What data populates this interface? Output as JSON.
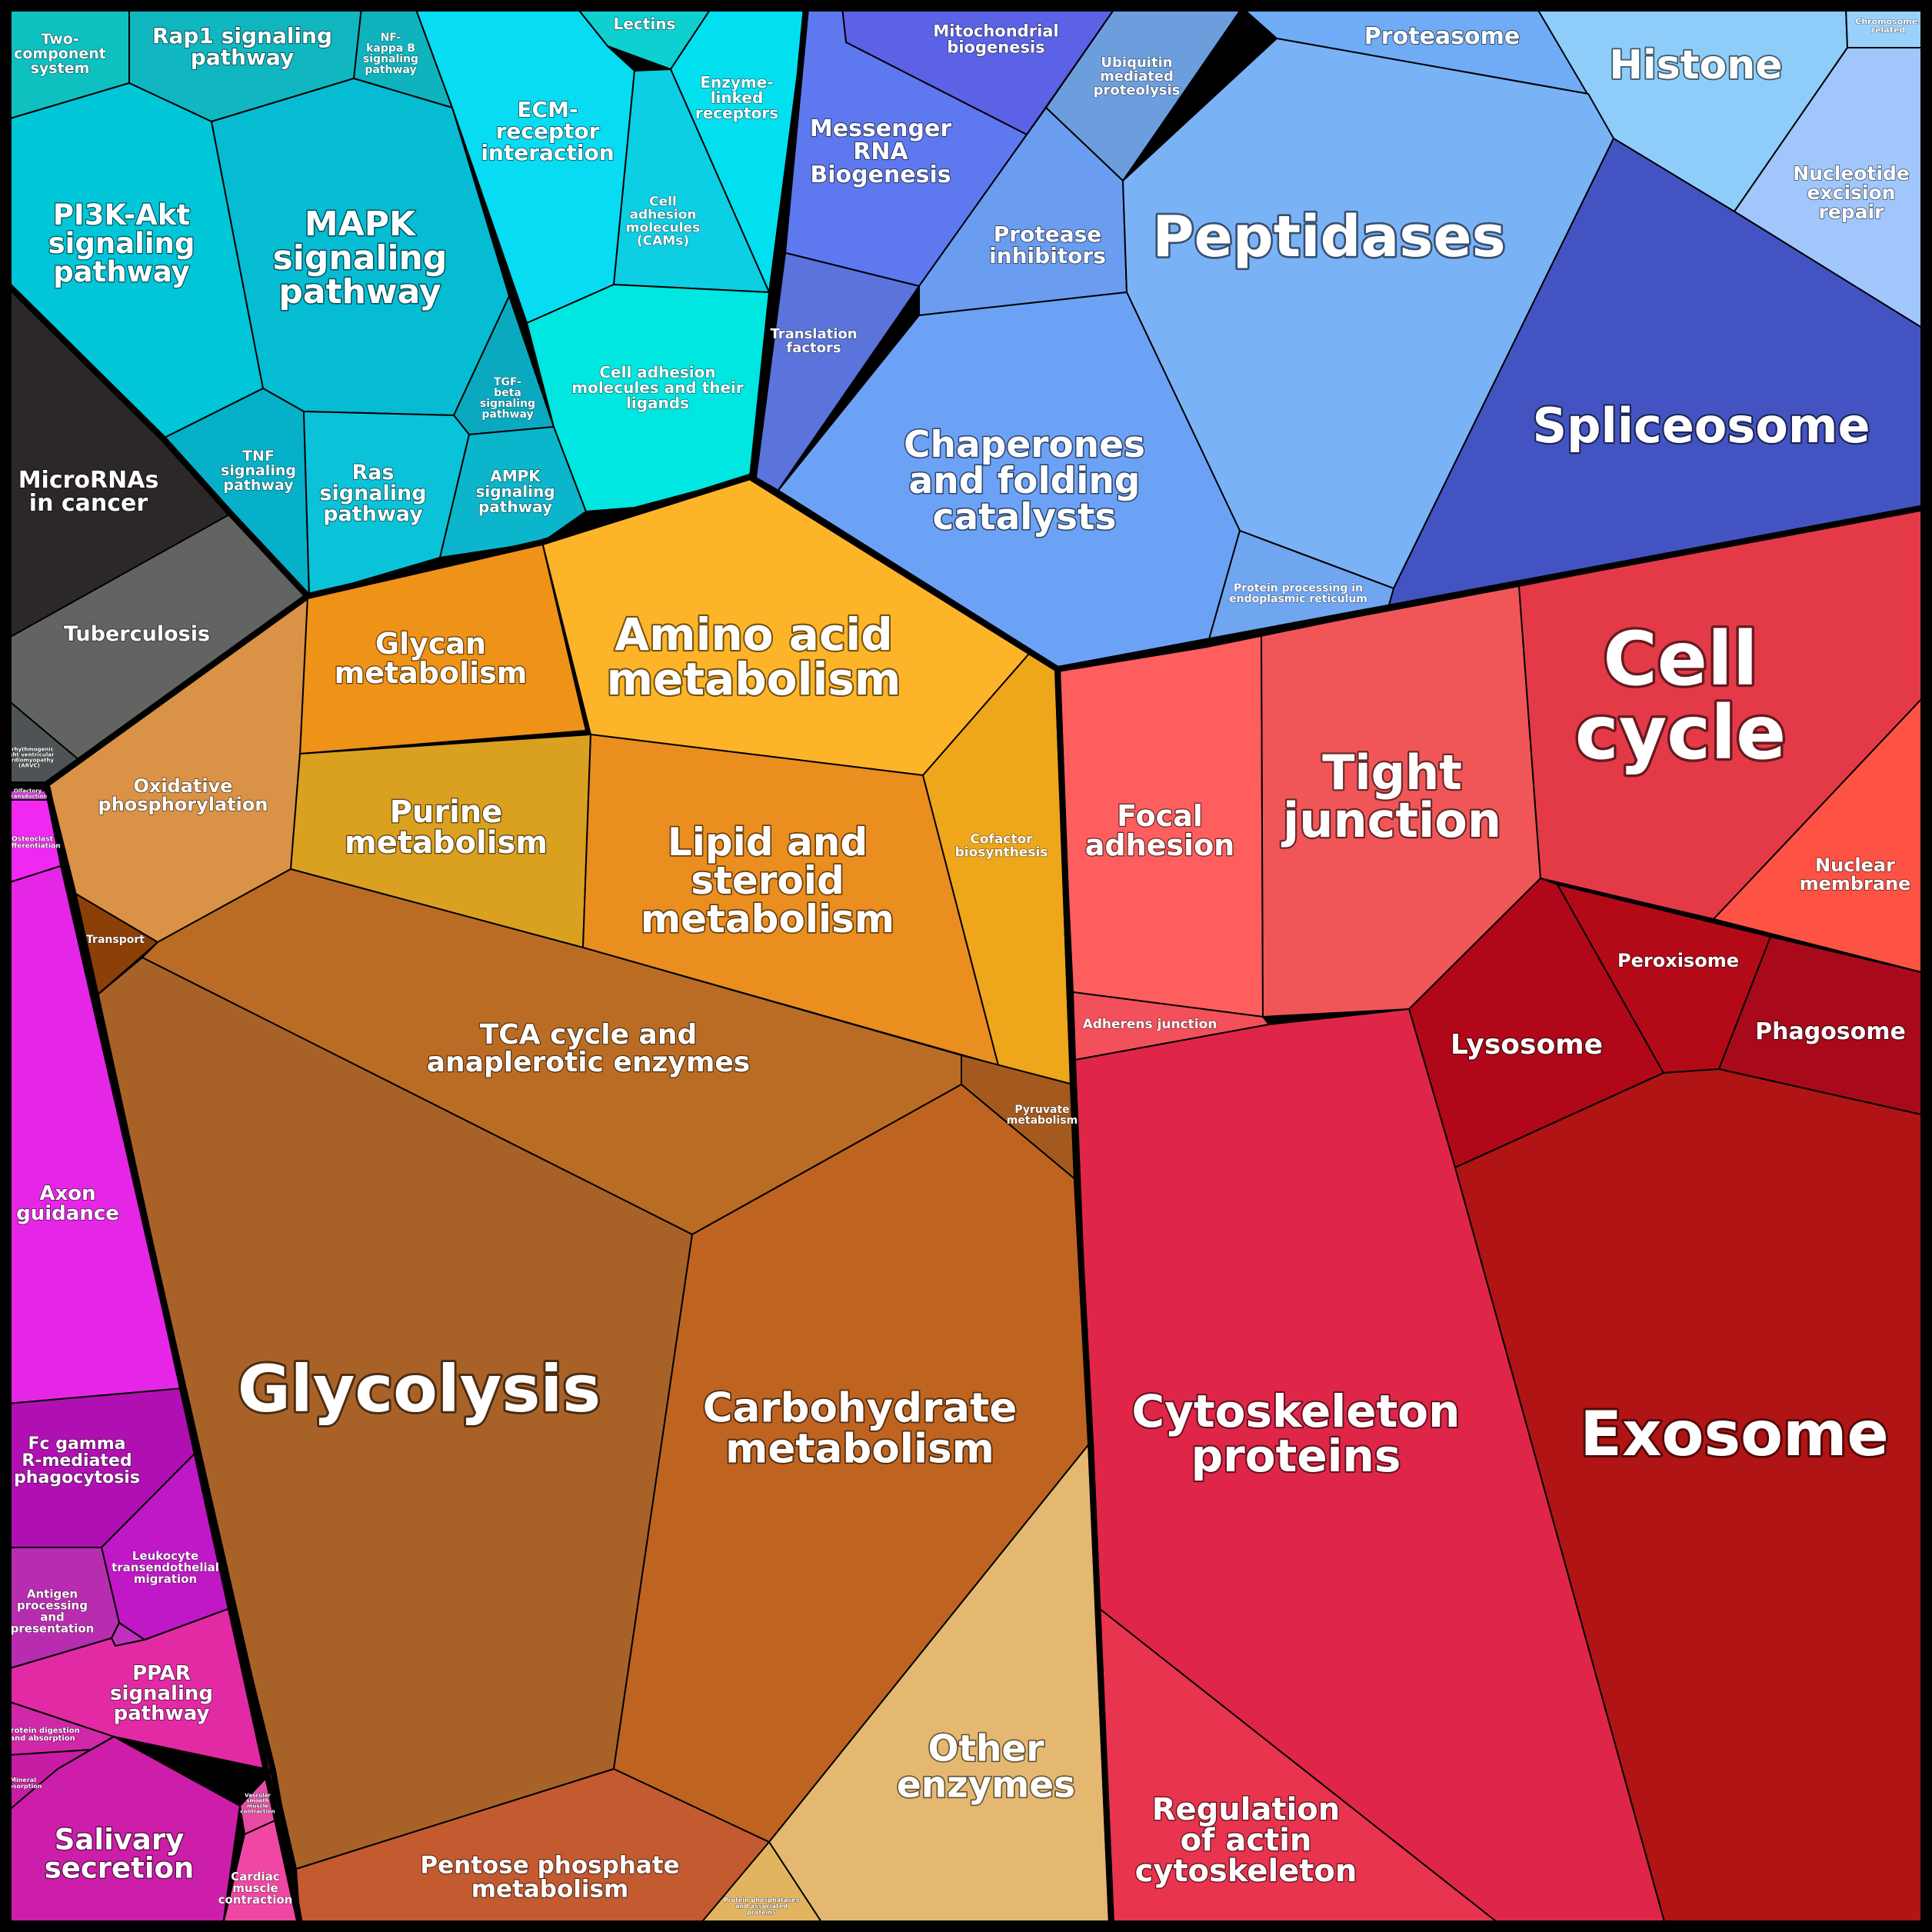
{
  "cells": [
    {
      "id": "two-component-system",
      "label": "Two-\ncomponent\nsystem",
      "color": "#0fc0c0"
    },
    {
      "id": "rap1-signaling-pathway",
      "label": "Rap1 signaling\npathway",
      "color": "#10b7c0"
    },
    {
      "id": "nf-kappa-b-signaling-pathway",
      "label": "NF-\nkappa B\nsignaling\npathway",
      "color": "#0fb3bd"
    },
    {
      "id": "pi3k-akt-signaling-pathway",
      "label": "PI3K-Akt\nsignaling\npathway",
      "color": "#00c6d8"
    },
    {
      "id": "mapk-signaling-pathway",
      "label": "MAPK\nsignaling\npathway",
      "color": "#06bcd2"
    },
    {
      "id": "tgf-beta-signaling-pathway",
      "label": "TGF-\nbeta\nsignaling\npathway",
      "color": "#0aa9c0"
    },
    {
      "id": "tnf-signaling-pathway",
      "label": "TNF\nsignaling\npathway",
      "color": "#06b0c8"
    },
    {
      "id": "ras-signaling-pathway",
      "label": "Ras\nsignaling\npathway",
      "color": "#0bc3d8"
    },
    {
      "id": "ampk-signaling-pathway",
      "label": "AMPK\nsignaling\npathway",
      "color": "#0bb6cc"
    },
    {
      "id": "lectins",
      "label": "Lectins",
      "color": "#0fd0d0"
    },
    {
      "id": "ecm-receptor-interaction",
      "label": "ECM-\nreceptor\ninteraction",
      "color": "#07dcf2"
    },
    {
      "id": "enzyme-linked-receptors",
      "label": "Enzyme-\nlinked\nreceptors",
      "color": "#02e0f0"
    },
    {
      "id": "cell-adhesion-molecules-cams",
      "label": "Cell\nadhesion\nmolecules\n(CAMs)",
      "color": "#0ccfe4"
    },
    {
      "id": "cell-adhesion-molecules-and-their-ligands",
      "label": "Cell adhesion\nmolecules and their\nligands",
      "color": "#00e6e0"
    },
    {
      "id": "micrornas-in-cancer",
      "label": "MicroRNAs\nin cancer",
      "color": "#2c2828"
    },
    {
      "id": "tuberculosis",
      "label": "Tuberculosis",
      "color": "#626462"
    },
    {
      "id": "arrhythmogenic-rv-cardiomyopathy",
      "label": "Arrhythmogenic\nright ventricular\ncardiomyopathy\n(ARVC)",
      "color": "#4e5456"
    },
    {
      "id": "mitochondrial-biogenesis",
      "label": "Mitochondrial\nbiogenesis",
      "color": "#5c62e6"
    },
    {
      "id": "messenger-rna-biogenesis",
      "label": "Messenger\nRNA\nBiogenesis",
      "color": "#5e78f0"
    },
    {
      "id": "translation-factors",
      "label": "Translation\nfactors",
      "color": "#5a74dc"
    },
    {
      "id": "ubiquitin-mediated-proteolysis",
      "label": "Ubiquitin\nmediated\nproteolysis",
      "color": "#6c9ede"
    },
    {
      "id": "proteasome",
      "label": "Proteasome",
      "color": "#70acf6"
    },
    {
      "id": "histone",
      "label": "Histone",
      "color": "#8ecdfa"
    },
    {
      "id": "chromosome-related",
      "label": "Chromosome-\nrelated",
      "color": "#98d2fc"
    },
    {
      "id": "nucleotide-excision-repair",
      "label": "Nucleotide\nexcision\nrepair",
      "color": "#a0c6fc"
    },
    {
      "id": "protease-inhibitors",
      "label": "Protease\ninhibitors",
      "color": "#6a9cf0"
    },
    {
      "id": "peptidases",
      "label": "Peptidases",
      "color": "#7ab2f6"
    },
    {
      "id": "spliceosome",
      "label": "Spliceosome",
      "color": "#4354c2"
    },
    {
      "id": "chaperones-and-folding-catalysts",
      "label": "Chaperones\nand folding\ncatalysts",
      "color": "#6ca2f6"
    },
    {
      "id": "protein-processing-in-er",
      "label": "Protein processing in\nendoplasmic reticulum",
      "color": "#70a6f0"
    },
    {
      "id": "glycan-metabolism",
      "label": "Glycan\nmetabolism",
      "color": "#ee9218"
    },
    {
      "id": "amino-acid-metabolism",
      "label": "Amino acid\nmetabolism",
      "color": "#feb428"
    },
    {
      "id": "oxidative-phosphorylation",
      "label": "Oxidative\nphosphorylation",
      "color": "#da9246"
    },
    {
      "id": "purine-metabolism",
      "label": "Purine\nmetabolism",
      "color": "#daa020"
    },
    {
      "id": "lipid-and-steroid-metabolism",
      "label": "Lipid and\nsteroid\nmetabolism",
      "color": "#ea8e20"
    },
    {
      "id": "cofactor-biosynthesis",
      "label": "Cofactor\nbiosynthesis",
      "color": "#eea61a"
    },
    {
      "id": "transport",
      "label": "Transport",
      "color": "#8c4008"
    },
    {
      "id": "tca-cycle-and-anaplerotic-enzymes",
      "label": "TCA cycle and\nanaplerotic enzymes",
      "color": "#ba6c24"
    },
    {
      "id": "pyruvate-metabolism",
      "label": "Pyruvate\nmetabolism",
      "color": "#a45a1e"
    },
    {
      "id": "glycolysis",
      "label": "Glycolysis",
      "color": "#a86228"
    },
    {
      "id": "carbohydrate-metabolism",
      "label": "Carbohydrate\nmetabolism",
      "color": "#be6420"
    },
    {
      "id": "other-enzymes",
      "label": "Other\nenzymes",
      "color": "#e4b870"
    },
    {
      "id": "pentose-phosphate-metabolism",
      "label": "Pentose phosphate\nmetabolism",
      "color": "#c45a30"
    },
    {
      "id": "protein-phosphatases",
      "label": "Protein phosphatases\nand associated\nproteins",
      "color": "#e2b460"
    },
    {
      "id": "olfactory-transduction",
      "label": "Olfactory\ntransduction",
      "color": "#e830e8"
    },
    {
      "id": "osteoclast-differentiation",
      "label": "Osteoclast\ndifferentiation",
      "color": "#f028f2"
    },
    {
      "id": "axon-guidance",
      "label": "Axon\nguidance",
      "color": "#e626e6"
    },
    {
      "id": "fc-gamma-r-mediated-phagocytosis",
      "label": "Fc gamma\nR-mediated\nphagocytosis",
      "color": "#b010b2"
    },
    {
      "id": "leukocyte-transendothelial-migration",
      "label": "Leukocyte\ntransendothelial\nmigration",
      "color": "#c018c6"
    },
    {
      "id": "antigen-processing-and-presentation",
      "label": "Antigen\nprocessing\nand\npresentation",
      "color": "#b82cb0"
    },
    {
      "id": "small-magenta-cell",
      "label": "",
      "color": "#c030c0"
    },
    {
      "id": "ppar-signaling-pathway",
      "label": "PPAR\nsignaling\npathway",
      "color": "#e22aa4"
    },
    {
      "id": "protein-digestion-and-absorption",
      "label": "Protein digestion\nand absorption",
      "color": "#d028a8"
    },
    {
      "id": "mineral-absorption",
      "label": "Mineral\nabsorption",
      "color": "#c81ca4"
    },
    {
      "id": "salivary-secretion",
      "label": "Salivary\nsecretion",
      "color": "#cc1ea8"
    },
    {
      "id": "vascular-smooth-muscle-contraction",
      "label": "Vascular\nsmooth\nmuscle\ncontraction",
      "color": "#e84aa4"
    },
    {
      "id": "cardiac-muscle-contraction",
      "label": "Cardiac\nmuscle\ncontraction",
      "color": "#f046a4"
    },
    {
      "id": "focal-adhesion",
      "label": "Focal\nadhesion",
      "color": "#fe5e5e"
    },
    {
      "id": "tight-junction",
      "label": "Tight\njunction",
      "color": "#f05658"
    },
    {
      "id": "cell-cycle",
      "label": "Cell\ncycle",
      "color": "#e43a48"
    },
    {
      "id": "nuclear-membrane",
      "label": "Nuclear\nmembrane",
      "color": "#fe5244"
    },
    {
      "id": "adherens-junction",
      "label": "Adherens junction",
      "color": "#f2505a"
    },
    {
      "id": "lysosome",
      "label": "Lysosome",
      "color": "#b00818"
    },
    {
      "id": "peroxisome",
      "label": "Peroxisome",
      "color": "#b40a18"
    },
    {
      "id": "phagosome",
      "label": "Phagosome",
      "color": "#a80a1c"
    },
    {
      "id": "cytoskeleton-proteins",
      "label": "Cytoskeleton\nproteins",
      "color": "#e02648"
    },
    {
      "id": "regulation-of-actin-cytoskeleton",
      "label": "Regulation\nof actin\ncytoskeleton",
      "color": "#e8344e"
    },
    {
      "id": "exosome",
      "label": "Exosome",
      "color": "#b01414"
    }
  ]
}
